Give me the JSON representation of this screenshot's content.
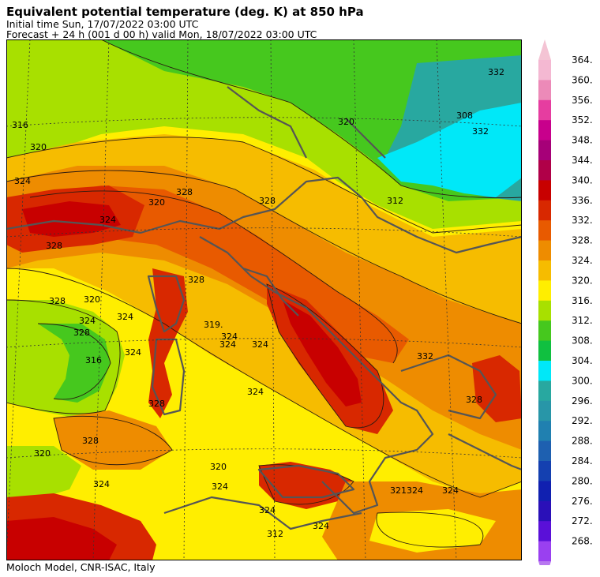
{
  "header": {
    "title": "Equivalent potential temperature (deg. K) at 850 hPa",
    "initial_time": "Initial time  Sun, 17/07/2022  03:00 UTC",
    "forecast": "Forecast  +  24 h  (001 d 00 h)  valid Mon, 18/07/2022 03:00 UTC"
  },
  "footer": {
    "credit": "Moloch Model, CNR-ISAC, Italy"
  },
  "colorbar": {
    "labels": [
      "364.",
      "360.",
      "356.",
      "352.",
      "348.",
      "344.",
      "340.",
      "336.",
      "332.",
      "328.",
      "324.",
      "320.",
      "316.",
      "312.",
      "308.",
      "304.",
      "300.",
      "296.",
      "292.",
      "288.",
      "284.",
      "280.",
      "276.",
      "272.",
      "268."
    ],
    "colors": [
      "#f4b8d2",
      "#ec8ab8",
      "#e63da0",
      "#c8008c",
      "#a60078",
      "#b00048",
      "#c80000",
      "#d82800",
      "#e85a00",
      "#ee8c00",
      "#f6bc00",
      "#ffee00",
      "#a8e000",
      "#46c81e",
      "#10c040",
      "#00e8f8",
      "#28a8a0",
      "#2896a8",
      "#2080b0",
      "#1e60b0",
      "#1440b0",
      "#1020b0",
      "#2a10b8",
      "#5a10d8",
      "#9a40f0"
    ],
    "cap_top_color": "#f4c4d4",
    "cap_bottom_color": "#b878f0"
  },
  "map": {
    "contour_labels": [
      "316",
      "320",
      "324",
      "328",
      "320",
      "324",
      "312",
      "328",
      "328",
      "320",
      "320",
      "324",
      "328",
      "328",
      "324",
      "328",
      "316",
      "324",
      "324",
      "319.",
      "324",
      "324",
      "328",
      "324",
      "320",
      "328",
      "324",
      "320",
      "324",
      "321324",
      "324",
      "324",
      "324",
      "312",
      "328",
      "308",
      "332",
      "332",
      "332"
    ],
    "colors": {
      "background": "#ffee00",
      "border_line": "#555555",
      "contour_line": "#2a1a10",
      "frame": "#000000",
      "grid": "#333333"
    }
  }
}
